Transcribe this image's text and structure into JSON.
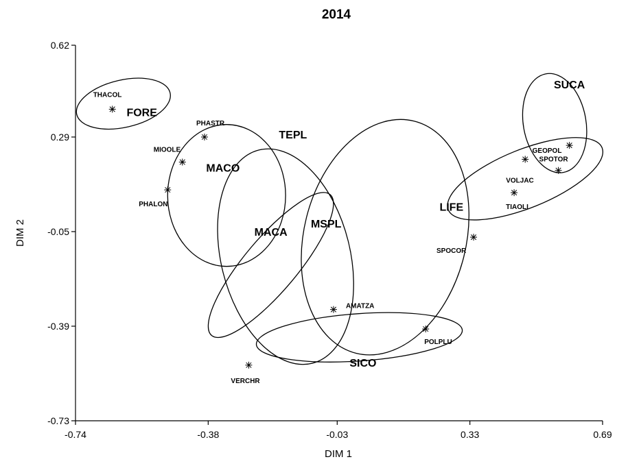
{
  "chart_data": {
    "type": "scatter",
    "title": "2014",
    "xlabel": "DIM 1",
    "ylabel": "DIM 2",
    "xlim": [
      -0.74,
      0.69
    ],
    "ylim": [
      -0.73,
      0.62
    ],
    "x_ticks": [
      -0.74,
      -0.38,
      -0.03,
      0.33,
      0.69
    ],
    "y_ticks": [
      0.62,
      0.29,
      -0.05,
      -0.39,
      -0.73
    ],
    "x_tick_labels": [
      "-0.74",
      "-0.38",
      "-0.03",
      "0.33",
      "0.69"
    ],
    "y_tick_labels": [
      "0.62",
      "0.29",
      "-0.05",
      "-0.39",
      "-0.73"
    ],
    "grid": false,
    "points": [
      {
        "label": "THACOL",
        "x": -0.64,
        "y": 0.39
      },
      {
        "label": "PHASTR",
        "x": -0.39,
        "y": 0.29
      },
      {
        "label": "MIOOLE",
        "x": -0.45,
        "y": 0.2
      },
      {
        "label": "PHALON",
        "x": -0.49,
        "y": 0.1
      },
      {
        "label": "AMATZA",
        "x": -0.04,
        "y": -0.33
      },
      {
        "label": "POLPLU",
        "x": 0.21,
        "y": -0.4
      },
      {
        "label": "VERCHR",
        "x": -0.27,
        "y": -0.53
      },
      {
        "label": "SPOCOR",
        "x": 0.34,
        "y": -0.07
      },
      {
        "label": "GEOPOL",
        "x": 0.6,
        "y": 0.26
      },
      {
        "label": "VOLJAC",
        "x": 0.48,
        "y": 0.21
      },
      {
        "label": "SPOTOR",
        "x": 0.57,
        "y": 0.17
      },
      {
        "label": "TIAOLI",
        "x": 0.45,
        "y": 0.09
      }
    ],
    "groups": [
      {
        "label": "FORE",
        "label_x": -0.56,
        "label_y": 0.38,
        "cx": -0.61,
        "cy": 0.41,
        "rx": 0.13,
        "ry": 0.085,
        "angle": -13
      },
      {
        "label": "MACO",
        "label_x": -0.34,
        "label_y": 0.18,
        "cx": -0.33,
        "cy": 0.08,
        "rx": 0.16,
        "ry": 0.255,
        "angle": 0
      },
      {
        "label": "MACA",
        "label_x": -0.21,
        "label_y": -0.05,
        "cx": -0.21,
        "cy": -0.17,
        "rx": 0.25,
        "ry": 0.095,
        "angle": -50
      },
      {
        "label": "TEPL",
        "label_x": -0.15,
        "label_y": 0.3,
        "cx": -0.17,
        "cy": -0.14,
        "rx": 0.175,
        "ry": 0.395,
        "angle": -14
      },
      {
        "label": "MSPL",
        "label_x": -0.06,
        "label_y": -0.02,
        "cx": 0.1,
        "cy": -0.07,
        "rx": 0.22,
        "ry": 0.43,
        "angle": 14
      },
      {
        "label": "SICO",
        "label_x": 0.04,
        "label_y": -0.52,
        "cx": 0.03,
        "cy": -0.43,
        "rx": 0.28,
        "ry": 0.085,
        "angle": -4
      },
      {
        "label": "LIFE",
        "label_x": 0.28,
        "label_y": 0.04,
        "cx": 0.48,
        "cy": 0.14,
        "rx": 0.225,
        "ry": 0.105,
        "angle": -22
      },
      {
        "label": "SUCA",
        "label_x": 0.6,
        "label_y": 0.48,
        "cx": 0.56,
        "cy": 0.34,
        "rx": 0.085,
        "ry": 0.18,
        "angle": -10
      }
    ]
  }
}
